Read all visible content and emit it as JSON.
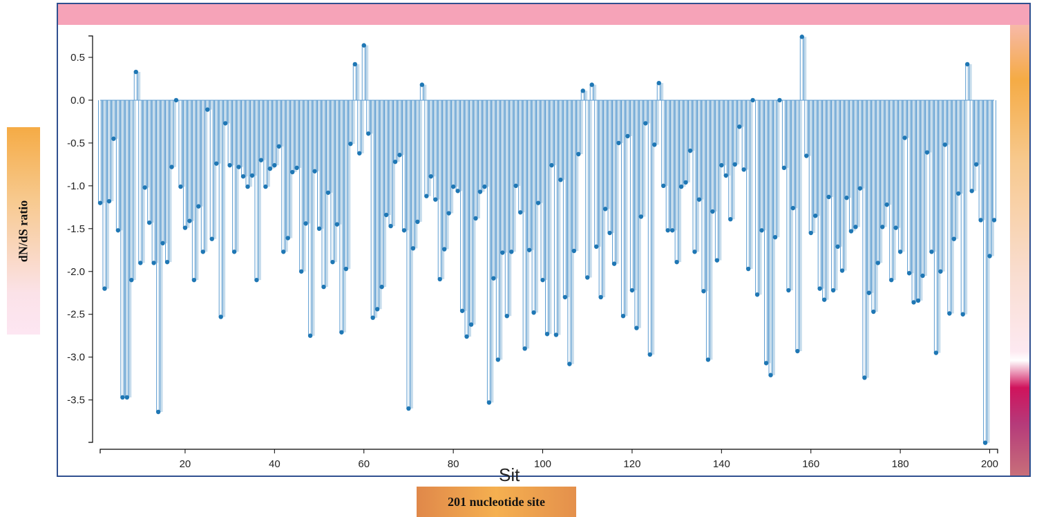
{
  "y_axis_label": "dN/dS ratio",
  "x_axis_label": "201 nucleotide site",
  "x_axis_title_partial": "Sit",
  "colors": {
    "fill": "#c6dcec",
    "line": "#5b9bd0",
    "dot": "#1f77b4",
    "frame": "#2f4f8f",
    "top_band": "#f6a3b8"
  },
  "chart_data": {
    "type": "area",
    "xlabel": "Sit",
    "ylabel": "dN/dS ratio",
    "xlim": [
      1,
      201
    ],
    "ylim": [
      -4.0,
      0.75
    ],
    "x_ticks": [
      20,
      40,
      60,
      80,
      100,
      120,
      140,
      160,
      180,
      200
    ],
    "y_ticks": [
      0.5,
      0.0,
      -0.5,
      -1.0,
      -1.5,
      -2.0,
      -2.5,
      -3.0,
      -3.5
    ],
    "y_tick_labels": [
      "0.5",
      "0.0",
      "-0.5",
      "-1.0",
      "-1.5",
      "-2.0",
      "-2.5",
      "-3.0",
      "-3.5"
    ],
    "baseline": 0.0,
    "step": true,
    "values": [
      -1.2,
      -2.2,
      -1.18,
      -0.45,
      -1.52,
      -3.47,
      -3.47,
      -2.1,
      0.33,
      -1.9,
      -1.02,
      -1.43,
      -1.9,
      -3.64,
      -1.67,
      -1.89,
      -0.78,
      0.0,
      -1.01,
      -1.49,
      -1.41,
      -2.1,
      -1.24,
      -1.77,
      -0.11,
      -1.62,
      -0.74,
      -2.53,
      -0.27,
      -0.76,
      -1.77,
      -0.78,
      -0.89,
      -1.01,
      -0.88,
      -2.1,
      -0.7,
      -1.01,
      -0.8,
      -0.76,
      -0.54,
      -1.77,
      -1.61,
      -0.84,
      -0.79,
      -2.0,
      -1.44,
      -2.75,
      -0.83,
      -1.5,
      -2.18,
      -1.08,
      -1.89,
      -1.45,
      -2.71,
      -1.97,
      -0.51,
      0.42,
      -0.62,
      0.64,
      -0.39,
      -2.54,
      -2.44,
      -2.18,
      -1.34,
      -1.47,
      -0.72,
      -0.64,
      -1.52,
      -3.6,
      -1.73,
      -1.42,
      0.18,
      -1.12,
      -0.89,
      -1.16,
      -2.09,
      -1.74,
      -1.32,
      -1.01,
      -1.06,
      -2.46,
      -2.76,
      -2.62,
      -1.38,
      -1.07,
      -1.01,
      -3.53,
      -2.08,
      -3.03,
      -1.78,
      -2.52,
      -1.77,
      -1.0,
      -1.31,
      -2.9,
      -1.75,
      -2.48,
      -1.2,
      -2.1,
      -2.73,
      -0.76,
      -2.74,
      -0.93,
      -2.3,
      -3.08,
      -1.76,
      -0.63,
      0.11,
      -2.07,
      0.18,
      -1.71,
      -2.3,
      -1.27,
      -1.55,
      -1.91,
      -0.5,
      -2.52,
      -0.42,
      -2.22,
      -2.66,
      -1.36,
      -0.27,
      -2.97,
      -0.52,
      0.2,
      -1.0,
      -1.52,
      -1.52,
      -1.89,
      -1.01,
      -0.96,
      -0.59,
      -1.77,
      -1.16,
      -2.23,
      -3.03,
      -1.3,
      -1.87,
      -0.76,
      -0.88,
      -1.39,
      -0.75,
      -0.31,
      -0.81,
      -1.97,
      0.0,
      -2.27,
      -1.52,
      -3.07,
      -3.21,
      -1.6,
      0.0,
      -0.79,
      -2.22,
      -1.26,
      -2.93,
      0.74,
      -0.65,
      -1.55,
      -1.35,
      -2.2,
      -2.33,
      -1.13,
      -2.22,
      -1.71,
      -1.99,
      -1.14,
      -1.53,
      -1.48,
      -1.03,
      -3.24,
      -2.25,
      -2.47,
      -1.9,
      -1.48,
      -1.22,
      -2.1,
      -1.49,
      -1.77,
      -0.44,
      -2.02,
      -2.36,
      -2.34,
      -2.05,
      -0.61,
      -1.77,
      -2.95,
      -2.0,
      -0.52,
      -2.49,
      -1.62,
      -1.09,
      -2.5,
      0.42,
      -1.06,
      -0.75,
      -1.4,
      -4.0,
      -1.82,
      -1.4
    ]
  }
}
